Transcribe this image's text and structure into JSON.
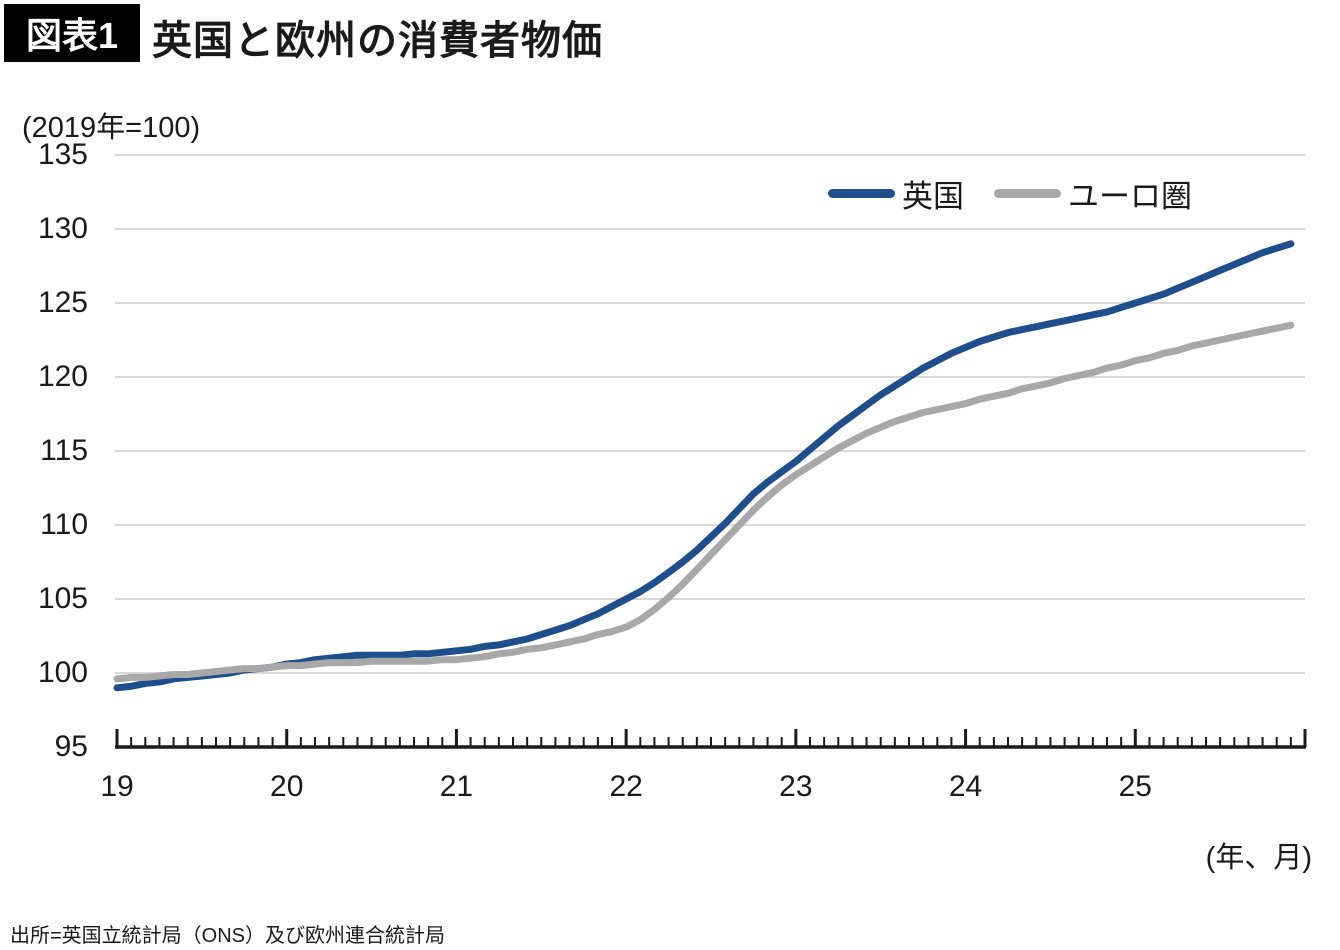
{
  "title": {
    "tag": "図表1",
    "text": "英国と欧州の消費者物価"
  },
  "axis": {
    "unit_note": "(2019年=100)",
    "x_unit_note": "(年、月)"
  },
  "source": "出所=英国立統計局（ONS）及び欧州連合統計局",
  "colors": {
    "grid": "#d9d9d9",
    "axis": "#1a1a1a",
    "uk_line": "#1f4e8c",
    "euro_line": "#a8a8a8"
  },
  "chart_data": {
    "type": "line",
    "title": "英国と欧州の消費者物価",
    "unit": "(2019年=100)",
    "x_unit": "(年、月)",
    "frequency": "monthly",
    "x_range": [
      "2019-01",
      "2025-12"
    ],
    "x_tick_labels": [
      "19",
      "20",
      "21",
      "22",
      "23",
      "24",
      "25"
    ],
    "ylim": [
      95,
      135
    ],
    "yticks": [
      135,
      130,
      125,
      120,
      115,
      110,
      105,
      100,
      95
    ],
    "grid": true,
    "legend_position": "top-right",
    "series": [
      {
        "name": "英国",
        "color": "#1f4e8c",
        "values": [
          99.0,
          99.1,
          99.3,
          99.4,
          99.6,
          99.7,
          99.8,
          99.9,
          100.0,
          100.2,
          100.3,
          100.4,
          100.6,
          100.7,
          100.9,
          101.0,
          101.1,
          101.2,
          101.2,
          101.2,
          101.2,
          101.3,
          101.3,
          101.4,
          101.5,
          101.6,
          101.8,
          101.9,
          102.1,
          102.3,
          102.6,
          102.9,
          103.2,
          103.6,
          104.0,
          104.5,
          105.0,
          105.5,
          106.1,
          106.8,
          107.5,
          108.3,
          109.2,
          110.1,
          111.1,
          112.1,
          112.9,
          113.6,
          114.3,
          115.1,
          115.9,
          116.7,
          117.4,
          118.1,
          118.8,
          119.4,
          120.0,
          120.6,
          121.1,
          121.6,
          122.0,
          122.4,
          122.7,
          123.0,
          123.2,
          123.4,
          123.6,
          123.8,
          124.0,
          124.2,
          124.4,
          124.7,
          125.0,
          125.3,
          125.6,
          126.0,
          126.4,
          126.8,
          127.2,
          127.6,
          128.0,
          128.4,
          128.7,
          129.0
        ]
      },
      {
        "name": "ユーロ圏",
        "color": "#a8a8a8",
        "values": [
          99.6,
          99.7,
          99.7,
          99.8,
          99.9,
          99.9,
          100.0,
          100.1,
          100.2,
          100.3,
          100.3,
          100.4,
          100.5,
          100.5,
          100.6,
          100.7,
          100.7,
          100.7,
          100.8,
          100.8,
          100.8,
          100.8,
          100.8,
          100.9,
          100.9,
          101.0,
          101.1,
          101.3,
          101.4,
          101.6,
          101.7,
          101.9,
          102.1,
          102.3,
          102.6,
          102.8,
          103.1,
          103.6,
          104.3,
          105.1,
          106.0,
          107.0,
          108.0,
          109.0,
          110.0,
          111.0,
          111.9,
          112.7,
          113.4,
          114.0,
          114.6,
          115.2,
          115.7,
          116.2,
          116.6,
          117.0,
          117.3,
          117.6,
          117.8,
          118.0,
          118.2,
          118.5,
          118.7,
          118.9,
          119.2,
          119.4,
          119.6,
          119.9,
          120.1,
          120.3,
          120.6,
          120.8,
          121.1,
          121.3,
          121.6,
          121.8,
          122.1,
          122.3,
          122.5,
          122.7,
          122.9,
          123.1,
          123.3,
          123.5
        ]
      }
    ]
  }
}
